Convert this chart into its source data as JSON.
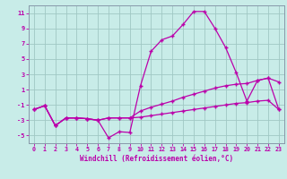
{
  "xlabel": "Windchill (Refroidissement éolien,°C)",
  "bg_color": "#c8ece8",
  "line_color": "#bb00aa",
  "grid_color": "#a0c8c4",
  "spine_color": "#8899aa",
  "xlim": [
    -0.5,
    23.5
  ],
  "ylim": [
    -6,
    12
  ],
  "yticks": [
    -5,
    -3,
    -1,
    1,
    3,
    5,
    7,
    9,
    11
  ],
  "xticks": [
    0,
    1,
    2,
    3,
    4,
    5,
    6,
    7,
    8,
    9,
    10,
    11,
    12,
    13,
    14,
    15,
    16,
    17,
    18,
    19,
    20,
    21,
    22,
    23
  ],
  "line1_x": [
    0,
    1,
    2,
    3,
    4,
    5,
    6,
    7,
    8,
    9,
    10,
    11,
    12,
    13,
    14,
    15,
    16,
    17,
    18,
    19,
    20,
    21,
    22,
    23
  ],
  "line1_y": [
    -1.6,
    -1.1,
    -3.7,
    -2.7,
    -2.7,
    -2.8,
    -3.0,
    -5.3,
    -4.5,
    -4.6,
    1.5,
    6.0,
    7.5,
    8.0,
    9.5,
    11.2,
    11.2,
    9.0,
    6.5,
    3.2,
    -0.5,
    2.2,
    2.5,
    2.0
  ],
  "line2_x": [
    0,
    1,
    2,
    3,
    4,
    5,
    6,
    7,
    8,
    9,
    10,
    11,
    12,
    13,
    14,
    15,
    16,
    17,
    18,
    19,
    20,
    21,
    22,
    23
  ],
  "line2_y": [
    -1.6,
    -1.1,
    -3.7,
    -2.7,
    -2.7,
    -2.8,
    -3.0,
    -2.7,
    -2.7,
    -2.7,
    -1.8,
    -1.3,
    -0.9,
    -0.5,
    -0.0,
    0.4,
    0.8,
    1.2,
    1.5,
    1.7,
    1.8,
    2.2,
    2.5,
    -1.6
  ],
  "line3_x": [
    0,
    1,
    2,
    3,
    4,
    5,
    6,
    7,
    8,
    9,
    10,
    11,
    12,
    13,
    14,
    15,
    16,
    17,
    18,
    19,
    20,
    21,
    22,
    23
  ],
  "line3_y": [
    -1.6,
    -1.1,
    -3.7,
    -2.7,
    -2.7,
    -2.8,
    -3.0,
    -2.7,
    -2.7,
    -2.7,
    -2.6,
    -2.4,
    -2.2,
    -2.0,
    -1.8,
    -1.6,
    -1.4,
    -1.2,
    -1.0,
    -0.8,
    -0.7,
    -0.5,
    -0.4,
    -1.6
  ]
}
